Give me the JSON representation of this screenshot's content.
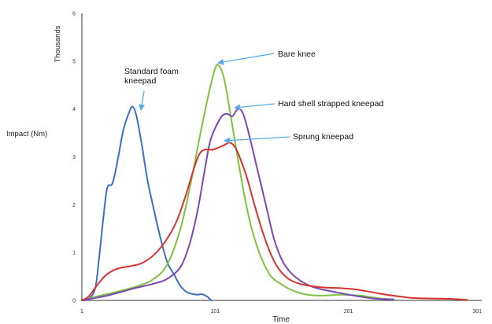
{
  "chart_data": {
    "type": "line",
    "ylabel": "Impact (Nm)",
    "yunit": "Thousands",
    "xlabel": "Time",
    "xlim": [
      1,
      301
    ],
    "ylim": [
      0,
      6
    ],
    "x_ticks": [
      1,
      101,
      201,
      301
    ],
    "y_ticks": [
      0,
      1,
      2,
      3,
      4,
      5,
      6
    ],
    "grid": false,
    "series": [
      {
        "name": "Standard foam kneepad",
        "color": "#3b6fc4",
        "points": [
          [
            1,
            0
          ],
          [
            6,
            0.03
          ],
          [
            11,
            0.25
          ],
          [
            14,
            0.9
          ],
          [
            17,
            1.7
          ],
          [
            20,
            2.35
          ],
          [
            24,
            2.45
          ],
          [
            28,
            2.95
          ],
          [
            32,
            3.55
          ],
          [
            36,
            3.9
          ],
          [
            39,
            4.05
          ],
          [
            42,
            3.85
          ],
          [
            46,
            3.25
          ],
          [
            50,
            2.55
          ],
          [
            55,
            1.9
          ],
          [
            60,
            1.3
          ],
          [
            65,
            0.8
          ],
          [
            70,
            0.55
          ],
          [
            75,
            0.3
          ],
          [
            80,
            0.17
          ],
          [
            85,
            0.13
          ],
          [
            88,
            0.12
          ],
          [
            91,
            0.13
          ],
          [
            95,
            0.08
          ],
          [
            98,
            0
          ]
        ]
      },
      {
        "name": "Bare knee",
        "color": "#7fc142",
        "points": [
          [
            1,
            0
          ],
          [
            15,
            0.1
          ],
          [
            30,
            0.2
          ],
          [
            45,
            0.32
          ],
          [
            55,
            0.45
          ],
          [
            65,
            0.75
          ],
          [
            75,
            1.5
          ],
          [
            83,
            2.5
          ],
          [
            90,
            3.5
          ],
          [
            96,
            4.3
          ],
          [
            101,
            4.85
          ],
          [
            104,
            4.9
          ],
          [
            108,
            4.6
          ],
          [
            113,
            3.8
          ],
          [
            119,
            2.8
          ],
          [
            125,
            1.9
          ],
          [
            131,
            1.25
          ],
          [
            137,
            0.8
          ],
          [
            143,
            0.5
          ],
          [
            150,
            0.35
          ],
          [
            158,
            0.22
          ],
          [
            168,
            0.13
          ],
          [
            180,
            0.1
          ],
          [
            195,
            0.12
          ],
          [
            210,
            0.1
          ],
          [
            225,
            0.04
          ],
          [
            235,
            0.02
          ]
        ]
      },
      {
        "name": "Hard shell strapped kneepad",
        "color": "#7b48b3",
        "points": [
          [
            1,
            0
          ],
          [
            20,
            0.1
          ],
          [
            40,
            0.25
          ],
          [
            55,
            0.35
          ],
          [
            65,
            0.45
          ],
          [
            75,
            0.7
          ],
          [
            82,
            1.2
          ],
          [
            88,
            1.9
          ],
          [
            93,
            2.7
          ],
          [
            97,
            3.3
          ],
          [
            101,
            3.6
          ],
          [
            106,
            3.85
          ],
          [
            110,
            3.9
          ],
          [
            114,
            3.85
          ],
          [
            118,
            4.0
          ],
          [
            122,
            3.9
          ],
          [
            127,
            3.4
          ],
          [
            133,
            2.7
          ],
          [
            139,
            2.0
          ],
          [
            145,
            1.3
          ],
          [
            151,
            0.85
          ],
          [
            157,
            0.6
          ],
          [
            163,
            0.45
          ],
          [
            170,
            0.33
          ],
          [
            178,
            0.25
          ],
          [
            190,
            0.18
          ],
          [
            205,
            0.1
          ],
          [
            220,
            0.04
          ],
          [
            235,
            0.02
          ]
        ]
      },
      {
        "name": "Sprung kneepad",
        "color": "#d8322e",
        "points": [
          [
            1,
            0
          ],
          [
            6,
            0.08
          ],
          [
            12,
            0.3
          ],
          [
            18,
            0.5
          ],
          [
            24,
            0.62
          ],
          [
            30,
            0.68
          ],
          [
            38,
            0.72
          ],
          [
            46,
            0.78
          ],
          [
            55,
            0.95
          ],
          [
            64,
            1.25
          ],
          [
            72,
            1.65
          ],
          [
            79,
            2.2
          ],
          [
            85,
            2.75
          ],
          [
            89,
            3.05
          ],
          [
            93,
            3.15
          ],
          [
            99,
            3.15
          ],
          [
            104,
            3.2
          ],
          [
            108,
            3.25
          ],
          [
            112,
            3.3
          ],
          [
            116,
            3.2
          ],
          [
            120,
            2.95
          ],
          [
            125,
            2.55
          ],
          [
            131,
            1.95
          ],
          [
            137,
            1.4
          ],
          [
            143,
            0.95
          ],
          [
            149,
            0.65
          ],
          [
            156,
            0.45
          ],
          [
            164,
            0.35
          ],
          [
            173,
            0.3
          ],
          [
            183,
            0.27
          ],
          [
            193,
            0.26
          ],
          [
            203,
            0.24
          ],
          [
            213,
            0.2
          ],
          [
            225,
            0.14
          ],
          [
            237,
            0.09
          ],
          [
            250,
            0.05
          ],
          [
            265,
            0.04
          ],
          [
            280,
            0.03
          ],
          [
            290,
            0.01
          ]
        ]
      }
    ],
    "annotations": [
      {
        "lines": [
          "Standard foam",
          "kneepad"
        ],
        "series": 0,
        "point_x": 39,
        "point_y": 4.05
      },
      {
        "lines": [
          "Bare knee"
        ],
        "series": 1,
        "point_x": 104,
        "point_y": 4.9
      },
      {
        "lines": [
          "Hard shell strapped kneepad"
        ],
        "series": 2,
        "point_x": 118,
        "point_y": 4.0
      },
      {
        "lines": [
          "Sprung kneepad"
        ],
        "series": 3,
        "point_x": 112,
        "point_y": 3.3
      }
    ]
  },
  "annotation_arrow_color": "#5aa9e6"
}
